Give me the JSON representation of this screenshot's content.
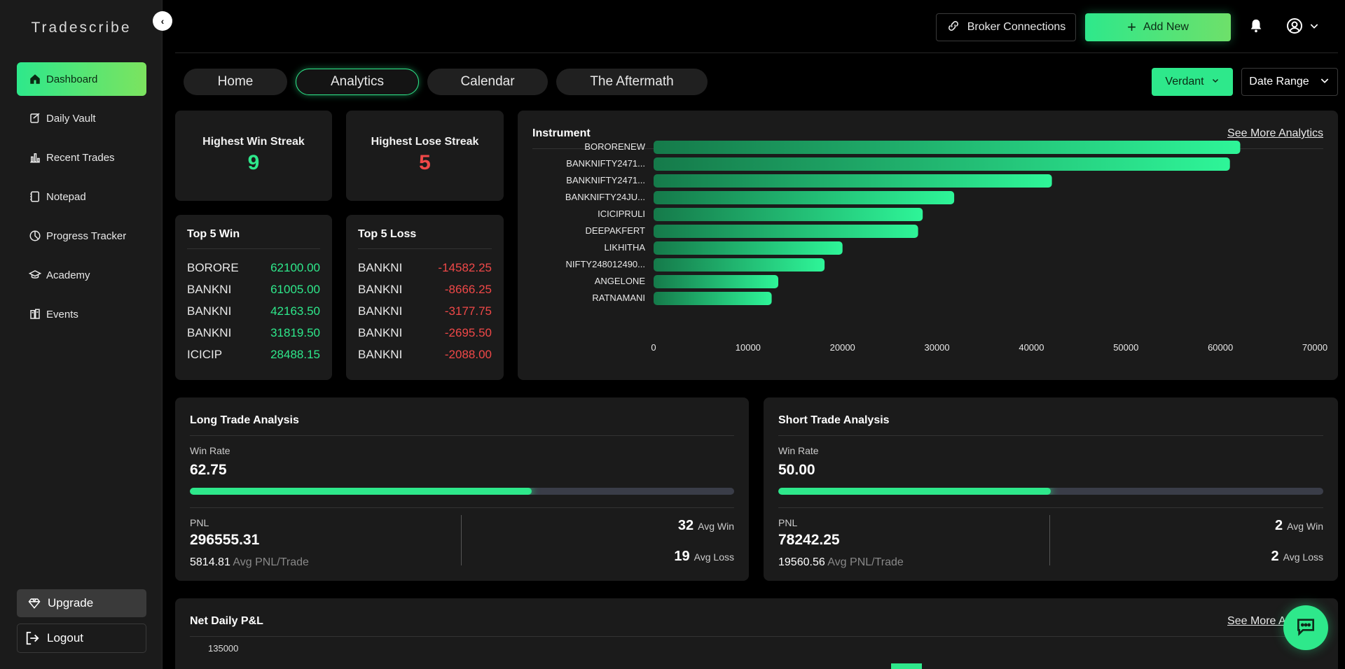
{
  "brand": "Tradescribe",
  "sidebar": {
    "items": [
      {
        "label": "Dashboard",
        "icon": "home-icon",
        "active": true
      },
      {
        "label": "Daily Vault",
        "icon": "vault-icon",
        "active": false
      },
      {
        "label": "Recent Trades",
        "icon": "bar-chart-icon",
        "active": false
      },
      {
        "label": "Notepad",
        "icon": "notepad-icon",
        "active": false
      },
      {
        "label": "Progress Tracker",
        "icon": "progress-icon",
        "active": false
      },
      {
        "label": "Academy",
        "icon": "graduation-cap-icon",
        "active": false
      },
      {
        "label": "Events",
        "icon": "events-icon",
        "active": false
      }
    ],
    "upgrade_label": "Upgrade",
    "logout_label": "Logout"
  },
  "header": {
    "broker_label": "Broker Connections",
    "add_label": "Add New"
  },
  "tabs": [
    {
      "label": "Home",
      "active": false
    },
    {
      "label": "Analytics",
      "active": true
    },
    {
      "label": "Calendar",
      "active": false
    },
    {
      "label": "The Aftermath",
      "active": false
    }
  ],
  "filters": {
    "account_label": "Verdant",
    "date_label": "Date Range"
  },
  "streaks": {
    "win_title": "Highest Win Streak",
    "win_value": "9",
    "lose_title": "Highest Lose Streak",
    "lose_value": "5"
  },
  "top_win": {
    "title": "Top 5 Win",
    "rows": [
      {
        "name": "BORORE",
        "value": "62100.00"
      },
      {
        "name": "BANKNI",
        "value": "61005.00"
      },
      {
        "name": "BANKNI",
        "value": "42163.50"
      },
      {
        "name": "BANKNI",
        "value": "31819.50"
      },
      {
        "name": "ICICIP",
        "value": "28488.15"
      }
    ]
  },
  "top_loss": {
    "title": "Top 5 Loss",
    "rows": [
      {
        "name": "BANKNI",
        "value": "-14582.25"
      },
      {
        "name": "BANKNI",
        "value": "-8666.25"
      },
      {
        "name": "BANKNI",
        "value": "-3177.75"
      },
      {
        "name": "BANKNI",
        "value": "-2695.50"
      },
      {
        "name": "BANKNI",
        "value": "-2088.00"
      }
    ]
  },
  "instrument": {
    "title": "Instrument",
    "link": "See More Analytics"
  },
  "chart_data": {
    "type": "bar",
    "orientation": "horizontal",
    "categories": [
      "BORORENEW",
      "BANKNIFTY2471...",
      "BANKNIFTY2471...",
      "BANKNIFTY24JU...",
      "ICICIPRULI",
      "DEEPAKFERT",
      "LIKHITHA",
      "NIFTY248012490...",
      "ANGELONE",
      "RATNAMANI"
    ],
    "values": [
      62100,
      61005,
      42163.5,
      31819.5,
      28488.15,
      28000,
      20000,
      18100,
      13200,
      12500
    ],
    "xticks": [
      0,
      10000,
      20000,
      30000,
      40000,
      50000,
      60000,
      70000
    ],
    "xlim": [
      0,
      70000
    ],
    "title": "Instrument"
  },
  "long_trade": {
    "title": "Long Trade Analysis",
    "win_rate_label": "Win Rate",
    "win_rate": "62.75",
    "win_rate_pct": 62.75,
    "pnl_label": "PNL",
    "pnl": "296555.31",
    "avg_pnl": "5814.81",
    "avg_pnl_label": "Avg PNL/Trade",
    "avg_win": "32",
    "avg_win_label": "Avg Win",
    "avg_loss": "19",
    "avg_loss_label": "Avg Loss"
  },
  "short_trade": {
    "title": "Short Trade Analysis",
    "win_rate_label": "Win Rate",
    "win_rate": "50.00",
    "win_rate_pct": 50,
    "pnl_label": "PNL",
    "pnl": "78242.25",
    "avg_pnl": "19560.56",
    "avg_pnl_label": "Avg PNL/Trade",
    "avg_win": "2",
    "avg_win_label": "Avg Win",
    "avg_loss": "2",
    "avg_loss_label": "Avg Loss"
  },
  "net_daily": {
    "title": "Net Daily P&L",
    "link": "See More Analytics",
    "ytick_top": "135000"
  },
  "colors": {
    "accent": "#2ee88b",
    "loss": "#f04848",
    "card": "#1b1b1b"
  }
}
